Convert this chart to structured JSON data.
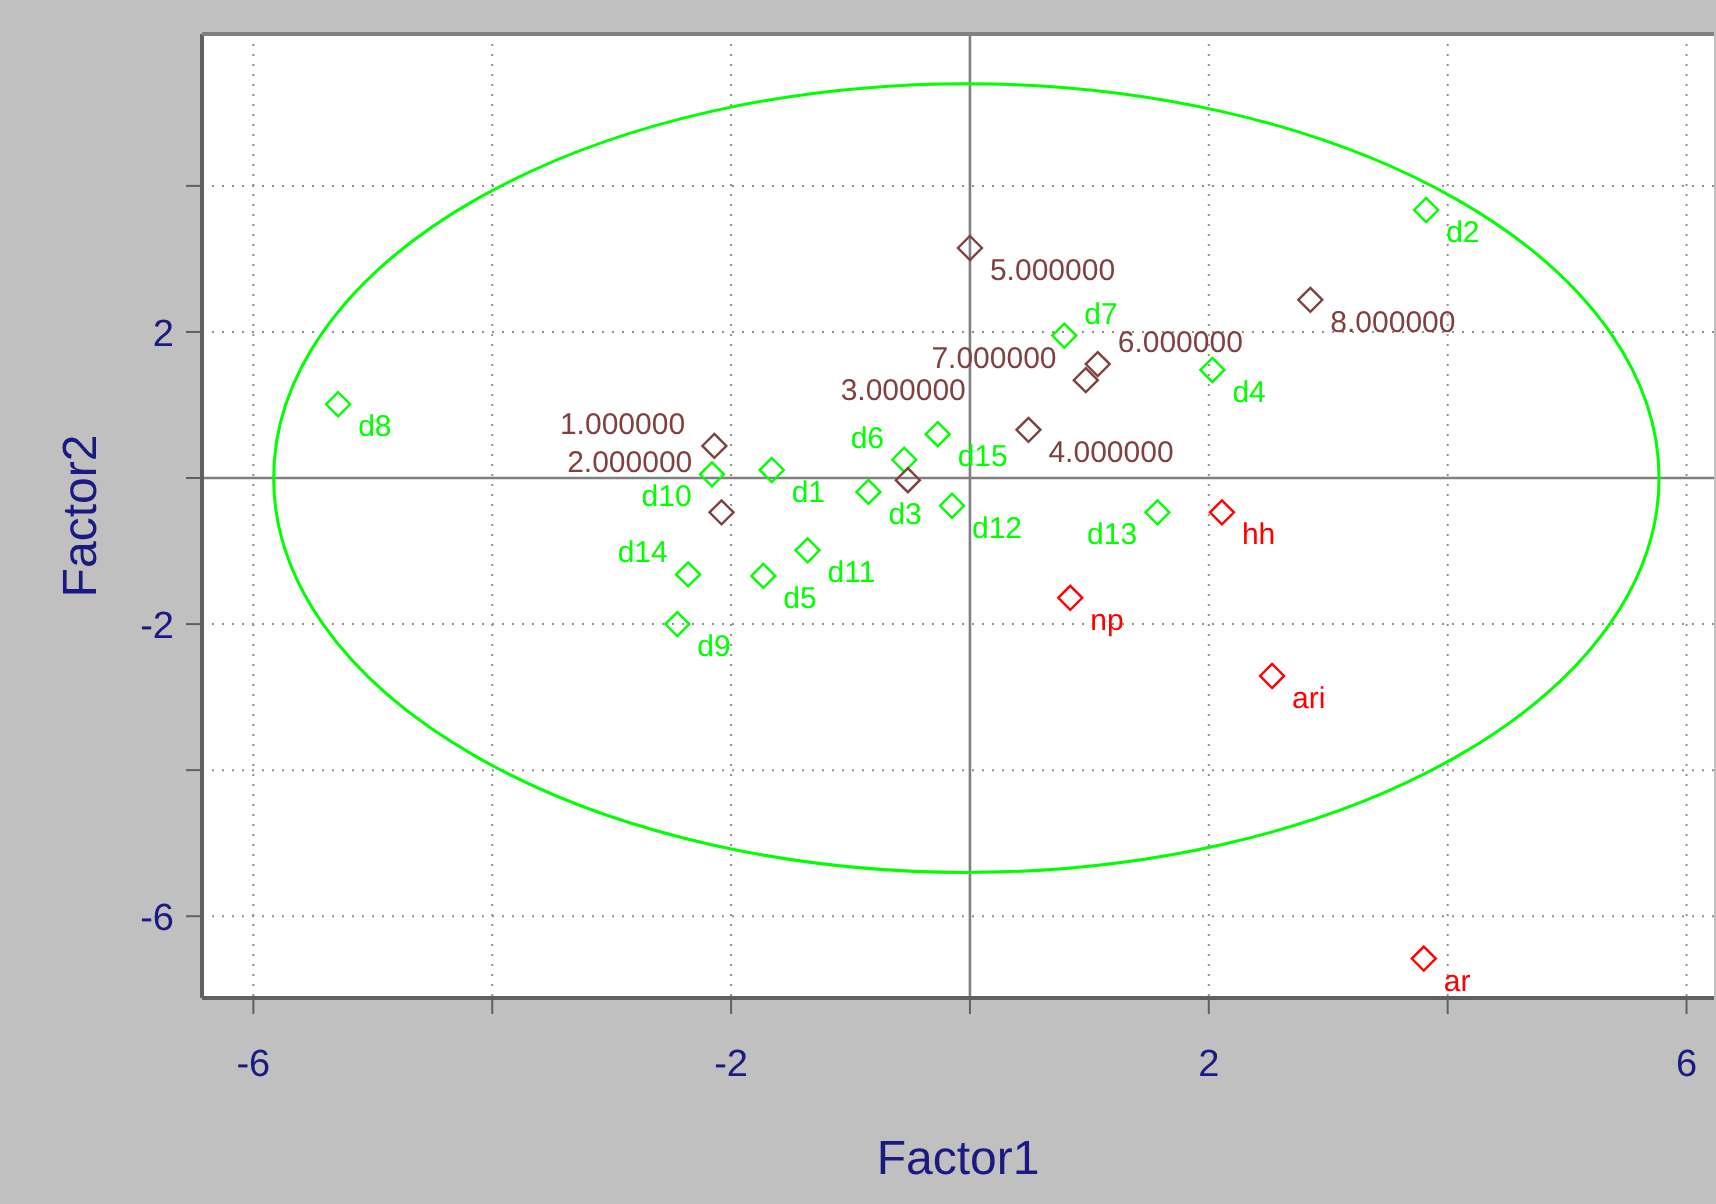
{
  "chart_data": {
    "type": "scatter",
    "xlabel": "Factor1",
    "ylabel": "Factor2",
    "xlim": [
      -6.43,
      6.23
    ],
    "ylim": [
      -7.12,
      6.08
    ],
    "xticks": [
      -6,
      {
        "value": -4,
        "label": null
      },
      -2,
      {
        "value": 0,
        "label": null
      },
      2,
      {
        "value": 4,
        "label": null
      },
      6
    ],
    "yticks": [
      {
        "value": -6,
        "label": "-6"
      },
      {
        "value": -4,
        "label": null
      },
      -2,
      {
        "value": 0,
        "label": null
      },
      2,
      {
        "value": 4,
        "label": null
      }
    ],
    "grid": true,
    "marker": "diamond",
    "series": [
      {
        "color": "#00ff00",
        "x": [
          -1.66,
          3.82,
          -0.85,
          2.03,
          -1.73,
          -0.55,
          0.79,
          -5.29,
          -2.45,
          -2.16,
          -1.36,
          -0.15,
          1.57,
          -2.36,
          -0.27
        ],
        "values": [
          0.11,
          3.67,
          -0.19,
          1.48,
          -1.34,
          0.25,
          1.95,
          1.01,
          -2.0,
          0.05,
          -0.99,
          -0.38,
          -0.47,
          -1.32,
          0.6
        ]
      },
      {
        "color": "#804040",
        "x": [
          -2.14,
          -2.08,
          -0.52,
          0.49,
          0.0,
          1.07,
          0.97,
          2.85
        ],
        "values": [
          0.44,
          -0.47,
          -0.03,
          0.66,
          3.15,
          1.56,
          1.34,
          2.44
        ]
      },
      {
        "color": "#ff0000",
        "x": [
          2.11,
          0.84,
          2.53,
          3.8
        ],
        "values": [
          -0.47,
          -1.64,
          -2.71,
          -6.58
        ]
      }
    ],
    "annotations": [
      {
        "text": "d1",
        "x": -1.66,
        "y": 0.11
      },
      {
        "text": "d2",
        "x": 3.82,
        "y": 3.67
      },
      {
        "text": "d3",
        "x": -0.85,
        "y": -0.19
      },
      {
        "text": "d4",
        "x": 2.03,
        "y": 1.48
      },
      {
        "text": "d5",
        "x": -1.73,
        "y": -1.34
      },
      {
        "text": "d6",
        "x": -0.55,
        "y": 0.25
      },
      {
        "text": "d7",
        "x": 0.79,
        "y": 1.95
      },
      {
        "text": "d8",
        "x": -5.29,
        "y": 1.01
      },
      {
        "text": "d9",
        "x": -2.45,
        "y": -2.0
      },
      {
        "text": "d10",
        "x": -2.16,
        "y": 0.05
      },
      {
        "text": "d11",
        "x": -1.36,
        "y": -0.99
      },
      {
        "text": "d12",
        "x": -0.15,
        "y": -0.38
      },
      {
        "text": "d13",
        "x": 1.57,
        "y": -0.47
      },
      {
        "text": "d14",
        "x": -2.36,
        "y": -1.32
      },
      {
        "text": "d15",
        "x": -0.27,
        "y": 0.6
      },
      {
        "text": "1.000000",
        "x": -2.14,
        "y": 0.44
      },
      {
        "text": "2.000000",
        "x": -2.08,
        "y": -0.47
      },
      {
        "text": "3.000000",
        "x": -0.52,
        "y": -0.03
      },
      {
        "text": "4.000000",
        "x": 0.49,
        "y": 0.66
      },
      {
        "text": "5.000000",
        "x": 0.0,
        "y": 3.15
      },
      {
        "text": "6.000000",
        "x": 1.07,
        "y": 1.56
      },
      {
        "text": "7.000000",
        "x": 0.97,
        "y": 1.34
      },
      {
        "text": "8.000000",
        "x": 2.85,
        "y": 2.44
      },
      {
        "text": "hh",
        "x": 2.11,
        "y": -0.47
      },
      {
        "text": "np",
        "x": 0.84,
        "y": -1.64
      },
      {
        "text": "ari",
        "x": 2.53,
        "y": -2.71
      },
      {
        "text": "ar",
        "x": 3.8,
        "y": -6.58
      }
    ]
  }
}
